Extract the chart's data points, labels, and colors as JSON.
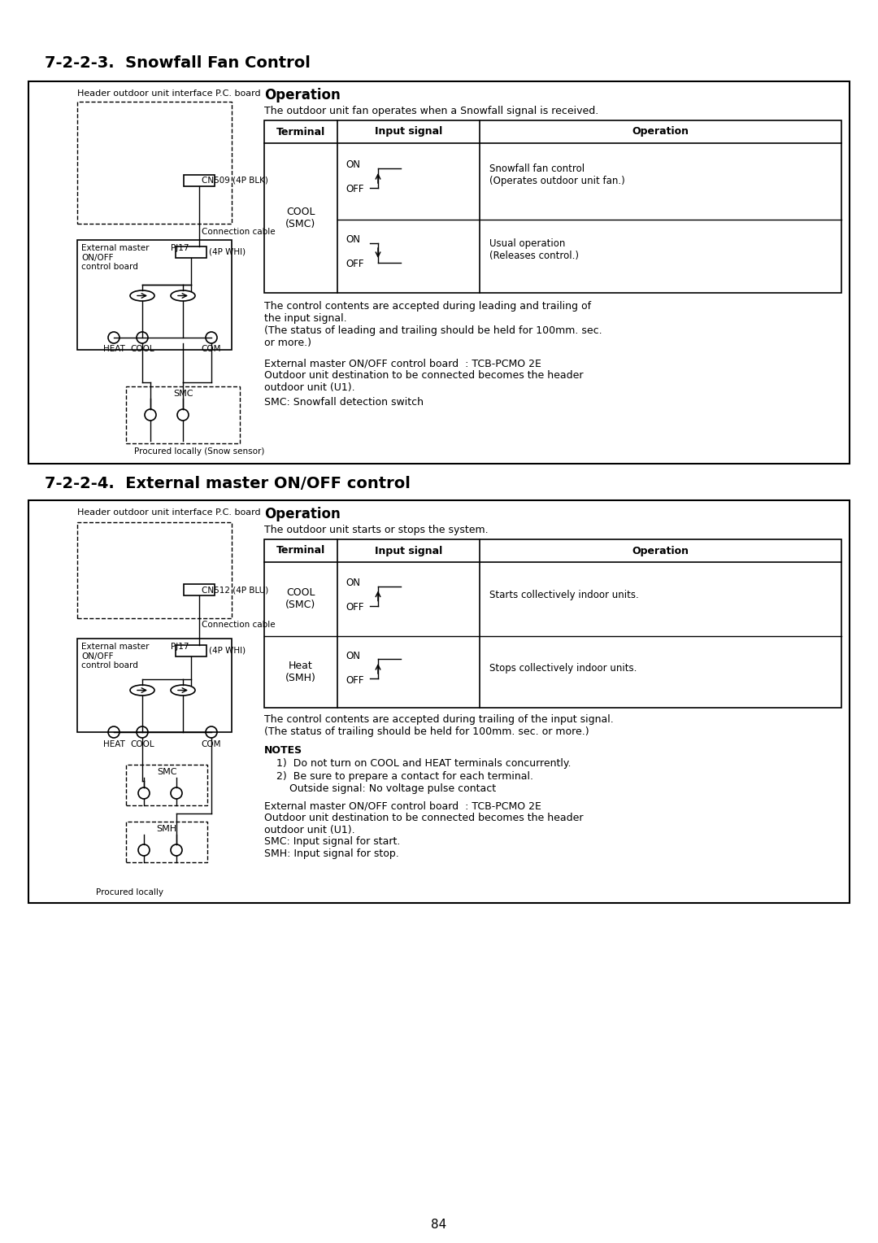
{
  "page_number": "84",
  "section1_title": "7-2-2-3.  Snowfall Fan Control",
  "section2_title": "7-2-2-4.  External master ON/OFF control",
  "section1": {
    "diagram_label_header": "Header outdoor unit interface P.C. board",
    "cn_label": "CN509 (4P BLK)",
    "conn_label": "Connection cable",
    "ext_label": "External master\nON/OFF\ncontrol board",
    "pj_label": "PJ17",
    "whi_label": "(4P WHI)",
    "heat_label": "HEAT",
    "cool_label": "COOL",
    "com_label": "COM",
    "smc_label": "SMC",
    "procured_label": "Procured locally (Snow sensor)",
    "op_title": "Operation",
    "op_desc": "The outdoor unit fan operates when a Snowfall signal is received.",
    "table_headers": [
      "Terminal",
      "Input signal",
      "Operation"
    ],
    "table_row1_term": "COOL\n(SMC)",
    "table_row1_op": "Snowfall fan control\n(Operates outdoor unit fan.)",
    "table_row2_op": "Usual operation\n(Releases control.)",
    "note1": "The control contents are accepted during leading and trailing of\nthe input signal.\n(The status of leading and trailing should be held for 100mm. sec.\nor more.)",
    "note2": "External master ON/OFF control board  : TCB-PCMO 2E",
    "note3": "Outdoor unit destination to be connected becomes the header\noutdoor unit (U1).",
    "note4": "SMC: Snowfall detection switch"
  },
  "section2": {
    "diagram_label_header": "Header outdoor unit interface P.C. board",
    "cn_label": "CN512 (4P BLU)",
    "conn_label": "Connection cable",
    "ext_label": "External master\nON/OFF\ncontrol board",
    "pj_label": "PJ17",
    "whi_label": "(4P WHI)",
    "heat_label": "HEAT",
    "cool_label": "COOL",
    "com_label": "COM",
    "smc_label": "SMC",
    "smh_label": "SMH",
    "procured_label": "Procured locally",
    "op_title": "Operation",
    "op_desc": "The outdoor unit starts or stops the system.",
    "table_headers": [
      "Terminal",
      "Input signal",
      "Operation"
    ],
    "table_row1_term": "COOL\n(SMC)",
    "table_row1_op": "Starts collectively indoor units.",
    "table_row2_term": "Heat\n(SMH)",
    "table_row2_op": "Stops collectively indoor units.",
    "note1": "The control contents are accepted during trailing of the input signal.\n(The status of trailing should be held for 100mm. sec. or more.)",
    "notes_title": "NOTES",
    "note_list1": "Do not turn on COOL and HEAT terminals concurrently.",
    "note_list2": "Be sure to prepare a contact for each terminal.\n    Outside signal: No voltage pulse contact",
    "note2": "External master ON/OFF control board  : TCB-PCMO 2E",
    "note3": "Outdoor unit destination to be connected becomes the header\noutdoor unit (U1).",
    "note4": "SMC: Input signal for start.\nSMH: Input signal for stop."
  }
}
